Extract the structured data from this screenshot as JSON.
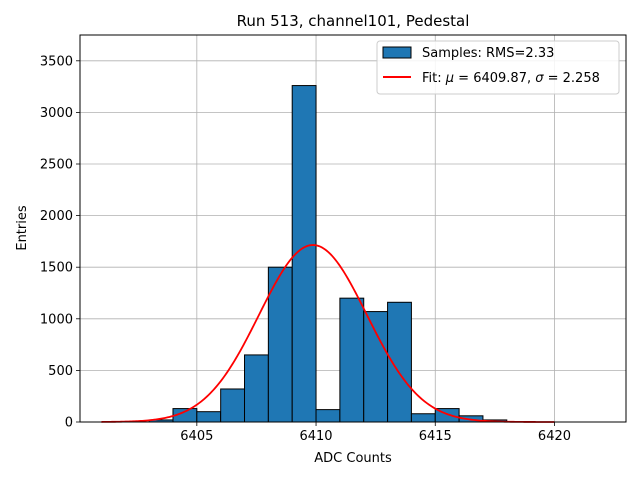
{
  "chart_data": {
    "type": "bar",
    "title": "Run 513, channel101, Pedestal",
    "xlabel": "ADC Counts",
    "ylabel": "Entries",
    "xlim": [
      6400.1,
      6423.0
    ],
    "ylim": [
      0,
      3750
    ],
    "xticks": [
      6405,
      6410,
      6415,
      6420
    ],
    "yticks": [
      0,
      500,
      1000,
      1500,
      2000,
      2500,
      3000,
      3500
    ],
    "grid": true,
    "legend_position": "top-right",
    "bar_color": "#1f77b4",
    "fit_color": "#ff0000",
    "histogram": {
      "name": "Samples: RMS=2.33",
      "bins": [
        {
          "x0": 6403,
          "x1": 6404,
          "count": 20
        },
        {
          "x0": 6404,
          "x1": 6405,
          "count": 130
        },
        {
          "x0": 6405,
          "x1": 6406,
          "count": 100
        },
        {
          "x0": 6406,
          "x1": 6407,
          "count": 320
        },
        {
          "x0": 6407,
          "x1": 6408,
          "count": 650
        },
        {
          "x0": 6408,
          "x1": 6409,
          "count": 1500
        },
        {
          "x0": 6409,
          "x1": 6410,
          "count": 3260
        },
        {
          "x0": 6410,
          "x1": 6411,
          "count": 120
        },
        {
          "x0": 6411,
          "x1": 6412,
          "count": 1200
        },
        {
          "x0": 6412,
          "x1": 6413,
          "count": 1070
        },
        {
          "x0": 6413,
          "x1": 6414,
          "count": 1160
        },
        {
          "x0": 6414,
          "x1": 6415,
          "count": 80
        },
        {
          "x0": 6415,
          "x1": 6416,
          "count": 130
        },
        {
          "x0": 6416,
          "x1": 6417,
          "count": 60
        },
        {
          "x0": 6417,
          "x1": 6418,
          "count": 20
        }
      ]
    },
    "fit": {
      "name_prefix": "Fit: ",
      "mu_label": "μ",
      "mu_text": " = 6409.87, ",
      "sigma_label": "σ",
      "sigma_text": " = 2.258",
      "mu": 6409.87,
      "sigma": 2.258,
      "amplitude": 1715,
      "x_range": [
        6401,
        6420
      ]
    }
  }
}
